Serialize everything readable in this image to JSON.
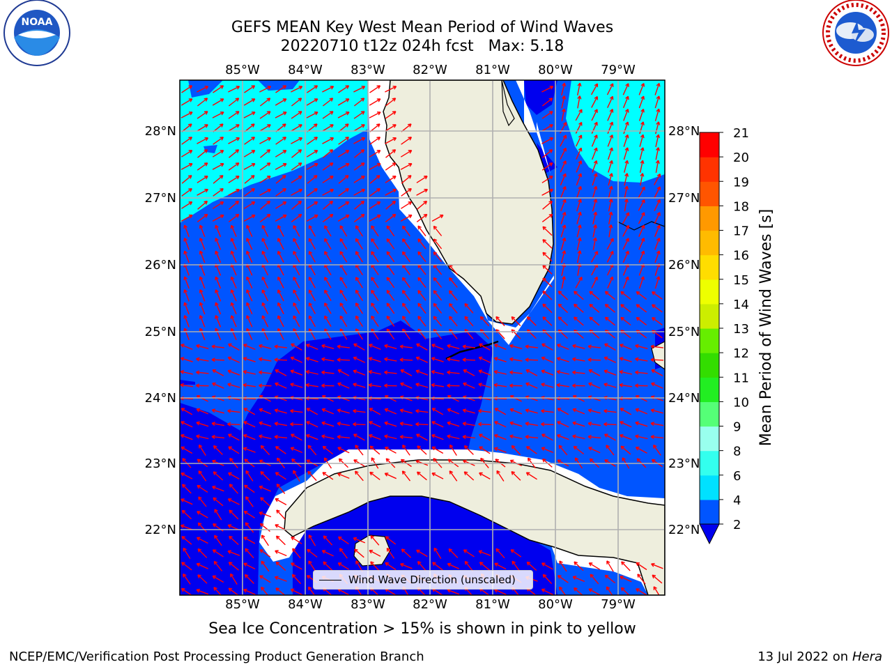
{
  "title_line1": "GEFS MEAN Key West Mean Period of Wind Waves",
  "title_line2": "20220710 t12z 024h fcst   Max: 5.18",
  "map": {
    "lon_labels": [
      "85°W",
      "84°W",
      "83°W",
      "82°W",
      "81°W",
      "80°W",
      "79°W"
    ],
    "lat_labels": [
      "28°N",
      "27°N",
      "26°N",
      "25°N",
      "24°N",
      "23°N",
      "22°N"
    ],
    "legend_label": "Wind Wave Direction (unscaled)"
  },
  "colorbar": {
    "label": "Mean Period of Wind Waves [s]",
    "ticks": [
      "2",
      "4",
      "6",
      "8",
      "9",
      "10",
      "11",
      "12",
      "13",
      "14",
      "15",
      "16",
      "17",
      "18",
      "19",
      "20",
      "21"
    ],
    "colors": [
      "#0055ff",
      "#00e1ff",
      "#33ffee",
      "#66ffee",
      "#99ffee",
      "#55ff77",
      "#22ee22",
      "#33dd00",
      "#66ee00",
      "#99ee00",
      "#ccee00",
      "#eeff00",
      "#ffdd00",
      "#ffbb00",
      "#ff9900",
      "#ff7700",
      "#ff5500",
      "#ff3300",
      "#ff0000"
    ],
    "under_color": "#0000ee"
  },
  "field_colors": {
    "band_2_4": "#0055ff",
    "band_under_2": "#0000ee",
    "band_4_6": "#00ffff",
    "land": "#eeeedd",
    "arrow": "#ff0000"
  },
  "note": "Sea Ice Concentration > 15% is shown in pink to yellow",
  "footer_left": "NCEP/EMC/Verification Post Processing Product Generation Branch",
  "footer_date": "13 Jul 2022 on",
  "footer_machine": "Hera"
}
